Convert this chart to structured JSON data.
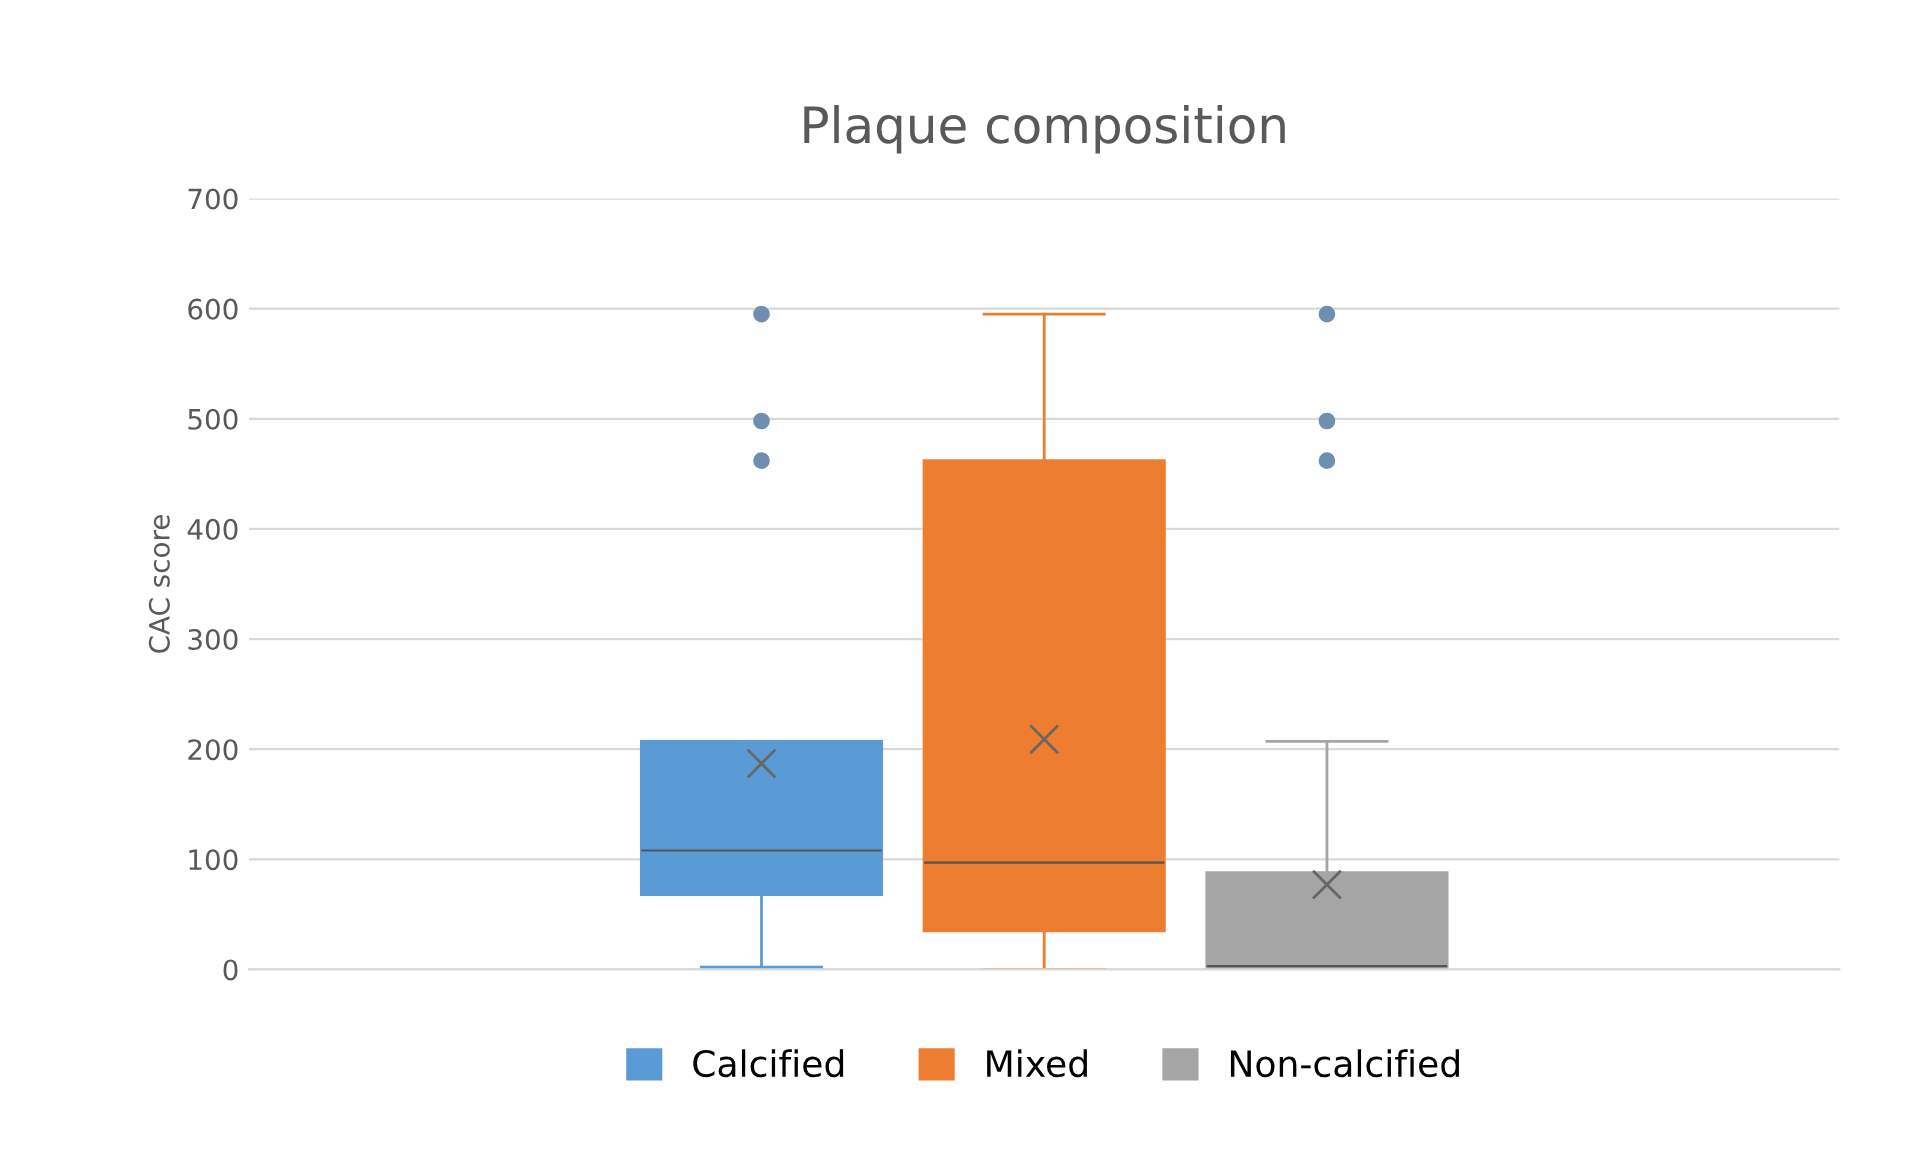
{
  "chart_data": {
    "type": "box",
    "title": "Plaque composition",
    "ylabel": "CAC score",
    "categories": [
      null
    ],
    "ylim": [
      0,
      700
    ],
    "yticks": [
      0,
      100,
      200,
      300,
      400,
      500,
      600,
      700
    ],
    "grid": "y",
    "legend": "bottom",
    "tick_labels": "y",
    "marker": "cross",
    "series": [
      {
        "name": "Calcified",
        "color": "#5b9bd5",
        "boxes": [
          {
            "low": 2,
            "q1": 68,
            "median": 108,
            "q3": 207,
            "high": 207,
            "mean": 187,
            "outliers": [
              595,
              498,
              462
            ]
          }
        ]
      },
      {
        "name": "Mixed",
        "color": "#ed7d31",
        "boxes": [
          {
            "low": 0,
            "q1": 35,
            "median": 97,
            "q3": 462,
            "high": 595,
            "mean": 209
          }
        ]
      },
      {
        "name": "Non-calcified",
        "color": "#a5a5a5",
        "boxes": [
          {
            "low": 0,
            "q1": 0,
            "median": 3,
            "q3": 88,
            "high": 207,
            "mean": 77,
            "outliers": [
              595,
              498,
              462
            ]
          }
        ]
      }
    ]
  }
}
